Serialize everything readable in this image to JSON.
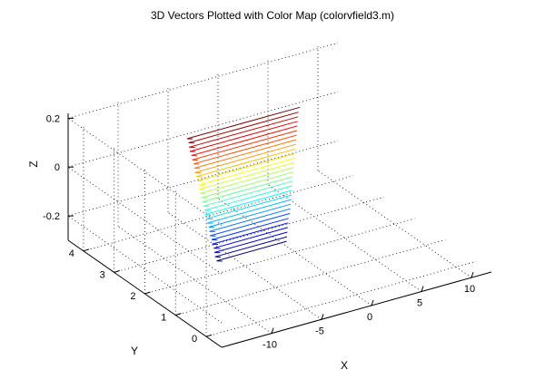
{
  "chart_data": {
    "type": "line",
    "title": "3D Vectors Plotted with Color Map (colorvfield3.m)",
    "xlabel": "X",
    "ylabel": "Y",
    "zlabel": "Z",
    "xlim": [
      -15,
      12
    ],
    "ylim": [
      -0.5,
      4.5
    ],
    "zlim": [
      -0.3,
      0.22
    ],
    "xticks": [
      -10,
      -5,
      0,
      5,
      10
    ],
    "xtick_labels": [
      "-10",
      "-5",
      "0",
      "5",
      "10"
    ],
    "yticks": [
      0,
      1,
      2,
      3,
      4
    ],
    "ytick_labels": [
      "0",
      "1",
      "2",
      "3",
      "4"
    ],
    "zticks": [
      -0.2,
      0,
      0.2
    ],
    "ztick_labels": [
      "-0.2",
      "0",
      "0.2"
    ],
    "grid": true,
    "colormap": "jet",
    "series": [
      {
        "start": [
          -13.5,
          0.15,
          -0.02
        ],
        "end": [
          -6.5,
          0.15,
          -0.02
        ]
      },
      {
        "start": [
          -13.2,
          0.3,
          -0.02
        ],
        "end": [
          -6.0,
          0.3,
          -0.02
        ]
      },
      {
        "start": [
          -12.8,
          0.45,
          -0.02
        ],
        "end": [
          -5.5,
          0.45,
          -0.02
        ]
      },
      {
        "start": [
          -12.4,
          0.6,
          -0.02
        ],
        "end": [
          -5.0,
          0.6,
          -0.02
        ]
      },
      {
        "start": [
          -12.1,
          0.75,
          -0.02
        ],
        "end": [
          -4.5,
          0.75,
          -0.02
        ]
      },
      {
        "start": [
          -11.7,
          0.9,
          -0.02
        ],
        "end": [
          -4.0,
          0.9,
          -0.02
        ]
      },
      {
        "start": [
          -11.4,
          1.05,
          -0.02
        ],
        "end": [
          -3.4,
          1.05,
          -0.02
        ]
      },
      {
        "start": [
          -11.0,
          1.2,
          -0.02
        ],
        "end": [
          -2.9,
          1.2,
          -0.02
        ]
      },
      {
        "start": [
          -10.6,
          1.35,
          -0.02
        ],
        "end": [
          -2.4,
          1.35,
          -0.02
        ]
      },
      {
        "start": [
          -10.3,
          1.5,
          -0.02
        ],
        "end": [
          -1.9,
          1.5,
          -0.02
        ]
      },
      {
        "start": [
          -9.9,
          1.65,
          -0.02
        ],
        "end": [
          -1.4,
          1.65,
          -0.02
        ]
      },
      {
        "start": [
          -9.6,
          1.8,
          -0.02
        ],
        "end": [
          -0.9,
          1.8,
          -0.02
        ]
      },
      {
        "start": [
          -9.2,
          1.95,
          -0.02
        ],
        "end": [
          -0.4,
          1.95,
          -0.02
        ]
      },
      {
        "start": [
          -8.8,
          2.1,
          -0.02
        ],
        "end": [
          0.1,
          2.1,
          -0.02
        ]
      },
      {
        "start": [
          -8.5,
          2.25,
          -0.02
        ],
        "end": [
          0.6,
          2.25,
          -0.02
        ]
      },
      {
        "start": [
          -8.1,
          2.4,
          -0.02
        ],
        "end": [
          1.1,
          2.4,
          -0.02
        ]
      },
      {
        "start": [
          -7.8,
          2.55,
          -0.02
        ],
        "end": [
          1.6,
          2.55,
          -0.02
        ]
      },
      {
        "start": [
          -7.4,
          2.7,
          -0.02
        ],
        "end": [
          2.1,
          2.7,
          -0.02
        ]
      },
      {
        "start": [
          -7.0,
          2.85,
          -0.02
        ],
        "end": [
          2.6,
          2.85,
          -0.02
        ]
      },
      {
        "start": [
          -6.7,
          3.0,
          -0.02
        ],
        "end": [
          3.1,
          3.0,
          -0.02
        ]
      },
      {
        "start": [
          -6.3,
          3.15,
          -0.02
        ],
        "end": [
          3.6,
          3.15,
          -0.02
        ]
      },
      {
        "start": [
          -6.0,
          3.3,
          -0.02
        ],
        "end": [
          4.1,
          3.3,
          -0.02
        ]
      },
      {
        "start": [
          -5.6,
          3.45,
          -0.02
        ],
        "end": [
          4.6,
          3.45,
          -0.02
        ]
      },
      {
        "start": [
          -5.2,
          3.6,
          -0.02
        ],
        "end": [
          5.1,
          3.6,
          -0.02
        ]
      },
      {
        "start": [
          -4.9,
          3.75,
          -0.02
        ],
        "end": [
          5.6,
          3.75,
          -0.02
        ]
      },
      {
        "start": [
          -4.5,
          3.9,
          -0.02
        ],
        "end": [
          6.1,
          3.9,
          -0.02
        ]
      },
      {
        "start": [
          -4.2,
          4.05,
          -0.02
        ],
        "end": [
          6.6,
          4.05,
          -0.02
        ]
      },
      {
        "start": [
          -3.8,
          4.2,
          -0.02
        ],
        "end": [
          7.1,
          4.2,
          -0.02
        ]
      },
      {
        "start": [
          -3.4,
          4.35,
          -0.02
        ],
        "end": [
          7.6,
          4.35,
          -0.02
        ]
      },
      {
        "start": [
          -3.1,
          4.5,
          -0.02
        ],
        "end": [
          8.2,
          4.5,
          -0.02
        ]
      }
    ]
  }
}
